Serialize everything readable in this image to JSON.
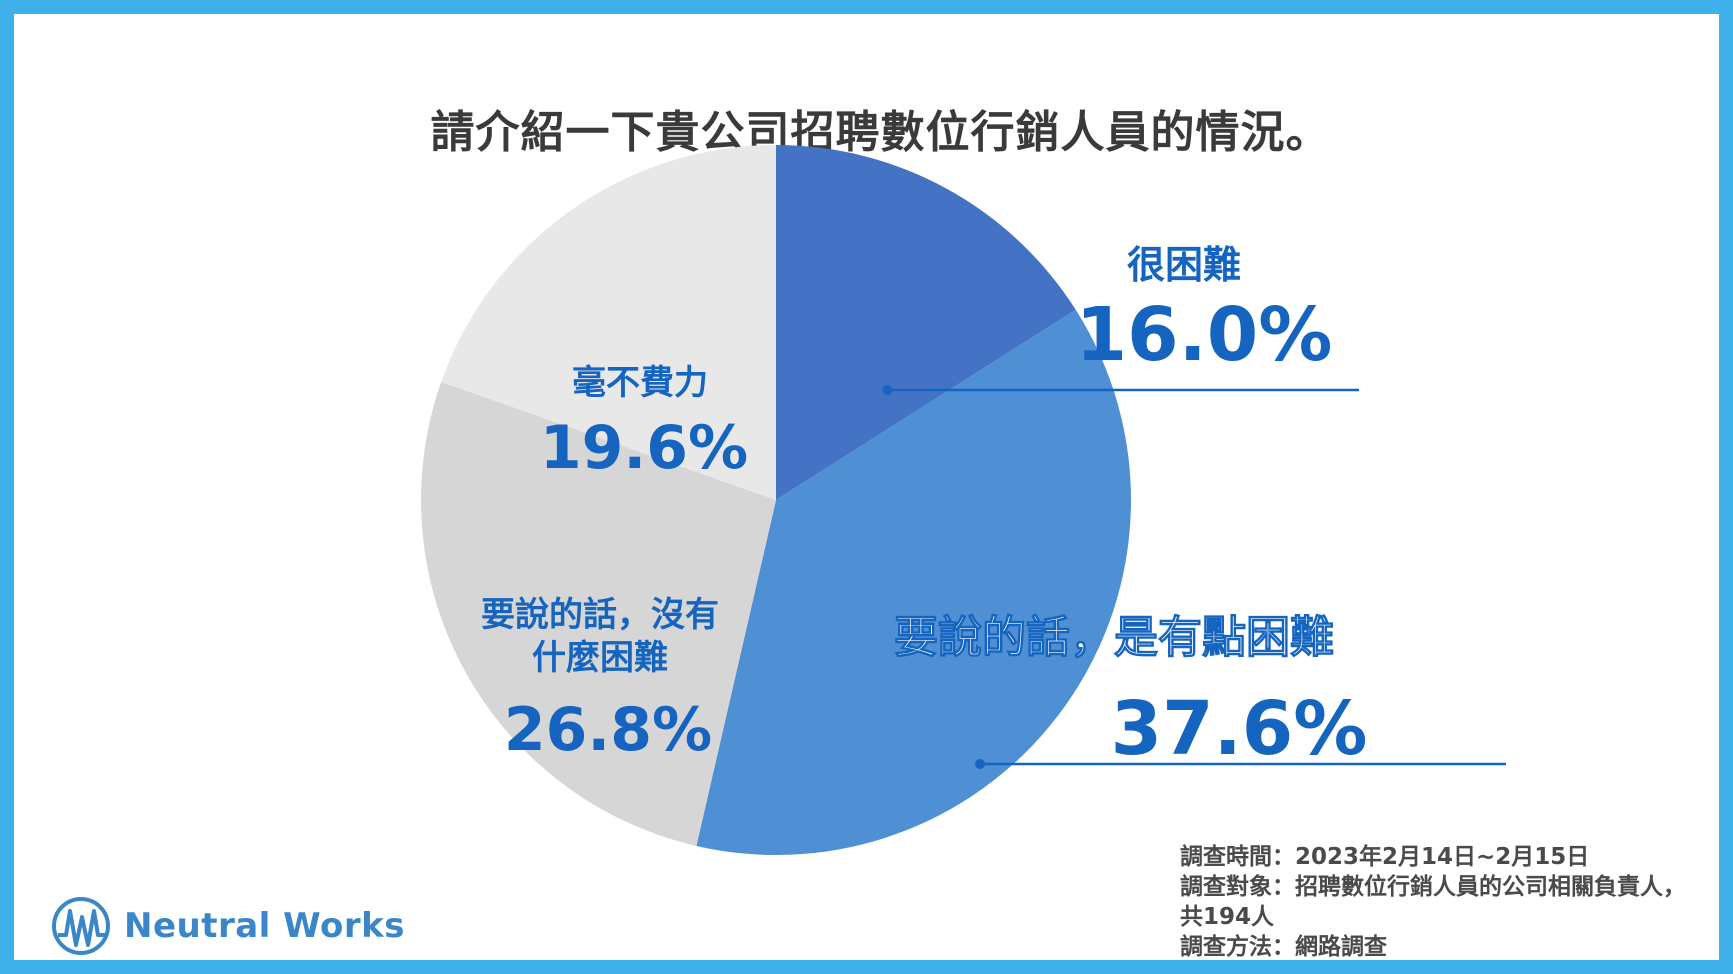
{
  "chart_data": {
    "type": "pie",
    "title": "請介紹一下貴公司招聘數位行銷人員的情況。",
    "slices": [
      {
        "label": "很困難",
        "value": 16.0,
        "value_label": "16.0%",
        "color": "#4472c4"
      },
      {
        "label": "要說的話，是有點困難",
        "value": 37.6,
        "value_label": "37.6%",
        "color": "#4f8fd4"
      },
      {
        "label_lines": [
          "要說的話，沒有",
          "什麼困難"
        ],
        "value": 26.8,
        "value_label": "26.8%",
        "color": "#d6d6d6"
      },
      {
        "label": "毫不費力",
        "value": 19.6,
        "value_label": "19.6%",
        "color": "#e8e8e8"
      }
    ]
  },
  "notes": {
    "line1": "調查時間：2023年2月14日~2月15日",
    "line2": "調查對象：招聘數位行銷人員的公司相關負責人，共194人",
    "line3": "調查方法：網路調查"
  },
  "logo": {
    "text": "Neutral Works",
    "icon": "neutral-works-logo-icon"
  },
  "colors": {
    "frame": "#3fb0ea",
    "accent": "#1565c0"
  }
}
